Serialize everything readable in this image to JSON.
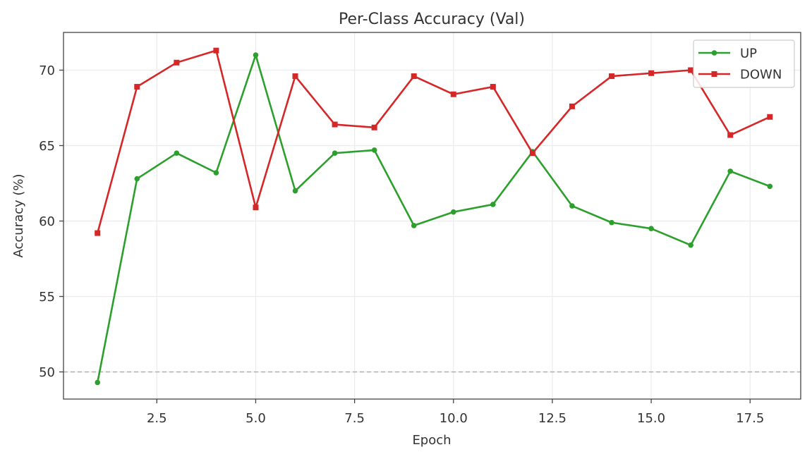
{
  "chart_data": {
    "type": "line",
    "title": "Per-Class Accuracy (Val)",
    "xlabel": "Epoch",
    "ylabel": "Accuracy (%)",
    "xlim": [
      0.14,
      18.78
    ],
    "ylim": [
      48.2,
      72.5
    ],
    "xticks": [
      2.5,
      5.0,
      7.5,
      10.0,
      12.5,
      15.0,
      17.5
    ],
    "xtick_labels": [
      "2.5",
      "5.0",
      "7.5",
      "10.0",
      "12.5",
      "15.0",
      "17.5"
    ],
    "yticks": [
      50,
      55,
      60,
      65,
      70
    ],
    "ytick_labels": [
      "50",
      "55",
      "60",
      "65",
      "70"
    ],
    "grid": true,
    "reference_line": {
      "y": 50,
      "style": "dashed",
      "color": "#b0b0b0"
    },
    "legend_position": "upper right",
    "x": [
      1,
      2,
      3,
      4,
      5,
      6,
      7,
      8,
      9,
      10,
      11,
      12,
      13,
      14,
      15,
      16,
      17,
      18
    ],
    "series": [
      {
        "name": "UP",
        "color": "#2ca02c",
        "marker": "circle",
        "values": [
          49.3,
          62.8,
          64.5,
          63.2,
          71.0,
          62.0,
          64.5,
          64.7,
          59.7,
          60.6,
          61.1,
          64.6,
          61.0,
          59.9,
          59.5,
          58.4,
          63.3,
          62.3
        ]
      },
      {
        "name": "DOWN",
        "color": "#d62728",
        "marker": "square",
        "values": [
          59.2,
          68.9,
          70.5,
          71.3,
          60.9,
          69.6,
          66.4,
          66.2,
          69.6,
          68.4,
          68.9,
          64.5,
          67.6,
          69.6,
          69.8,
          70.0,
          65.7,
          66.9
        ]
      }
    ]
  }
}
